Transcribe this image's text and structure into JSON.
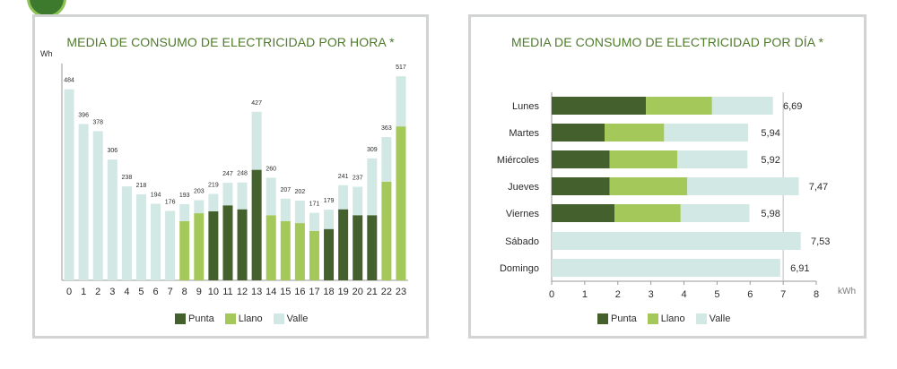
{
  "colors": {
    "punta": "#44612d",
    "llano": "#a5c85a",
    "valle": "#d2e8e5",
    "title": "#4e7a2a",
    "border": "#d2d4d3"
  },
  "legend": {
    "punta": "Punta",
    "llano": "Llano",
    "valle": "Valle"
  },
  "chart_data": [
    {
      "type": "bar",
      "title": "MEDIA DE CONSUMO DE ELECTRICIDAD POR HORA *",
      "ylabel": "Wh",
      "xlabel": "",
      "ylim": [
        0,
        540
      ],
      "grid": false,
      "legend": "bottom",
      "categories": [
        "0",
        "1",
        "2",
        "3",
        "4",
        "5",
        "6",
        "7",
        "8",
        "9",
        "10",
        "11",
        "12",
        "13",
        "14",
        "15",
        "16",
        "17",
        "18",
        "19",
        "20",
        "21",
        "22",
        "23"
      ],
      "values": [
        484,
        396,
        378,
        306,
        238,
        218,
        194,
        176,
        193,
        203,
        219,
        247,
        248,
        427,
        260,
        207,
        202,
        171,
        179,
        241,
        237,
        309,
        363,
        517
      ],
      "segments": [
        {
          "hour": "0",
          "punta": 0,
          "llano": 0,
          "valle": 484
        },
        {
          "hour": "1",
          "punta": 0,
          "llano": 0,
          "valle": 396
        },
        {
          "hour": "2",
          "punta": 0,
          "llano": 0,
          "valle": 378
        },
        {
          "hour": "3",
          "punta": 0,
          "llano": 0,
          "valle": 306
        },
        {
          "hour": "4",
          "punta": 0,
          "llano": 0,
          "valle": 238
        },
        {
          "hour": "5",
          "punta": 0,
          "llano": 0,
          "valle": 218
        },
        {
          "hour": "6",
          "punta": 0,
          "llano": 0,
          "valle": 194
        },
        {
          "hour": "7",
          "punta": 0,
          "llano": 0,
          "valle": 176
        },
        {
          "hour": "8",
          "punta": 0,
          "llano": 150,
          "valle": 43
        },
        {
          "hour": "9",
          "punta": 0,
          "llano": 170,
          "valle": 33
        },
        {
          "hour": "10",
          "punta": 175,
          "llano": 0,
          "valle": 44
        },
        {
          "hour": "11",
          "punta": 190,
          "llano": 0,
          "valle": 57
        },
        {
          "hour": "12",
          "punta": 180,
          "llano": 0,
          "valle": 68
        },
        {
          "hour": "13",
          "punta": 280,
          "llano": 0,
          "valle": 147
        },
        {
          "hour": "14",
          "punta": 0,
          "llano": 165,
          "valle": 95
        },
        {
          "hour": "15",
          "punta": 0,
          "llano": 150,
          "valle": 57
        },
        {
          "hour": "16",
          "punta": 0,
          "llano": 145,
          "valle": 57
        },
        {
          "hour": "17",
          "punta": 0,
          "llano": 125,
          "valle": 46
        },
        {
          "hour": "18",
          "punta": 130,
          "llano": 0,
          "valle": 49
        },
        {
          "hour": "19",
          "punta": 180,
          "llano": 0,
          "valle": 61
        },
        {
          "hour": "20",
          "punta": 165,
          "llano": 0,
          "valle": 72
        },
        {
          "hour": "21",
          "punta": 165,
          "llano": 0,
          "valle": 144
        },
        {
          "hour": "22",
          "punta": 0,
          "llano": 250,
          "valle": 113
        },
        {
          "hour": "23",
          "punta": 0,
          "llano": 390,
          "valle": 127
        }
      ]
    },
    {
      "type": "bar",
      "orientation": "horizontal",
      "stacked": true,
      "title": "MEDIA DE CONSUMO DE ELECTRICIDAD POR DÍA *",
      "xlabel": "kWh",
      "ylabel": "",
      "xlim": [
        0,
        8
      ],
      "xticks": [
        "0",
        "1",
        "2",
        "3",
        "4",
        "5",
        "6",
        "7",
        "8"
      ],
      "grid": false,
      "legend": "bottom",
      "categories": [
        "Lunes",
        "Martes",
        "Miércoles",
        "Jueves",
        "Viernes",
        "Sábado",
        "Domingo"
      ],
      "totals": [
        6.69,
        5.94,
        5.92,
        7.47,
        5.98,
        7.53,
        6.91
      ],
      "total_labels": [
        "6,69",
        "5,94",
        "5,92",
        "7,47",
        "5,98",
        "7,53",
        "6,91"
      ],
      "series": [
        {
          "name": "Punta",
          "values": [
            2.85,
            1.6,
            1.75,
            1.75,
            1.9,
            0,
            0
          ]
        },
        {
          "name": "Llano",
          "values": [
            2.0,
            1.8,
            2.05,
            2.35,
            2.0,
            0,
            0
          ]
        },
        {
          "name": "Valle",
          "values": [
            1.84,
            2.54,
            2.12,
            3.37,
            2.08,
            7.53,
            6.91
          ]
        }
      ]
    }
  ]
}
